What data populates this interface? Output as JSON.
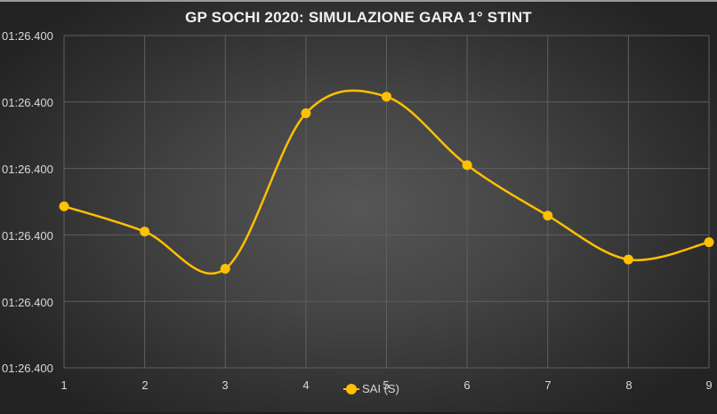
{
  "chart_data": {
    "type": "line",
    "title": "GP SOCHI 2020: SIMULAZIONE GARA 1° STINT",
    "xlabel": "",
    "ylabel": "",
    "categories": [
      "1",
      "2",
      "3",
      "4",
      "5",
      "6",
      "7",
      "8",
      "9"
    ],
    "y_tick_labels": [
      "01:26.400",
      "01:26.400",
      "01:26.400",
      "01:26.400",
      "01:26.400",
      "01:26.400"
    ],
    "series": [
      {
        "name": "SAI (S)",
        "color": "#ffc000",
        "smoothed": true,
        "values_relative": [
          2.43,
          2.05,
          1.49,
          3.83,
          4.08,
          3.05,
          2.29,
          1.63,
          1.89
        ]
      }
    ],
    "y_range_relative": [
      0,
      5
    ],
    "grid": true,
    "legend_position": "bottom"
  },
  "title": "GP SOCHI 2020: SIMULAZIONE GARA 1° STINT",
  "legend": {
    "label": "SAI (S)"
  }
}
